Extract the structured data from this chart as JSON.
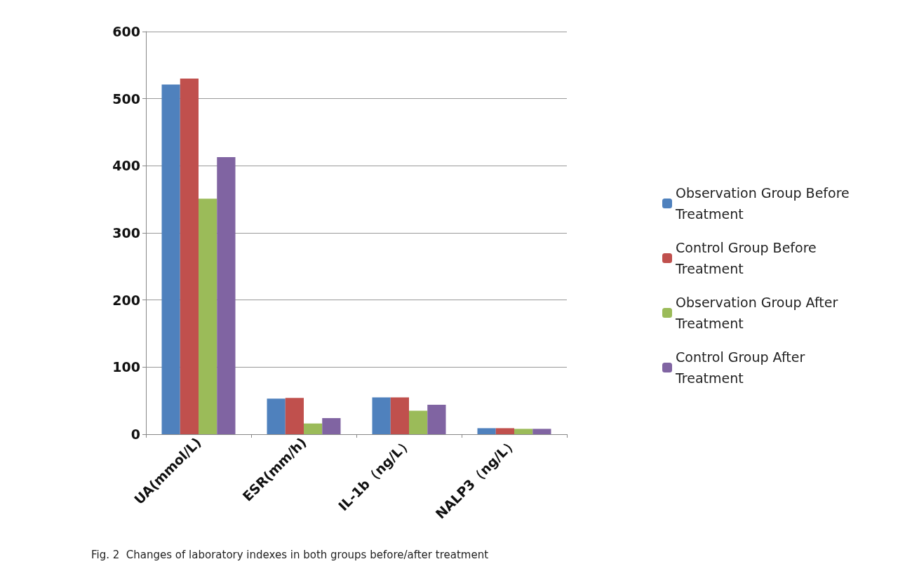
{
  "chart_data": {
    "type": "bar",
    "categories": [
      "UA(mmol/L)",
      "ESR(mm/h)",
      "IL-1b（ng/L）",
      "NALP3（ng/L）"
    ],
    "series": [
      {
        "name": "Observation Group Before Treatment",
        "color": "#4f81bd",
        "values": [
          521,
          53,
          55,
          9
        ]
      },
      {
        "name": "Control Group Before Treatment",
        "color": "#c0504d",
        "values": [
          530,
          54,
          55,
          9
        ]
      },
      {
        "name": "Observation Group After Treatment",
        "color": "#9bbb59",
        "values": [
          351,
          16,
          35,
          8
        ]
      },
      {
        "name": "Control Group After Treatment",
        "color": "#8064a2",
        "values": [
          413,
          24,
          44,
          8
        ]
      }
    ],
    "ylim": [
      0,
      600
    ],
    "yticks": [
      0,
      100,
      200,
      300,
      400,
      500,
      600
    ],
    "grid": "y",
    "legend": "right",
    "annotations": [
      "Fig. 2  Changes of laboratory indexes in both groups before/after treatment"
    ]
  }
}
